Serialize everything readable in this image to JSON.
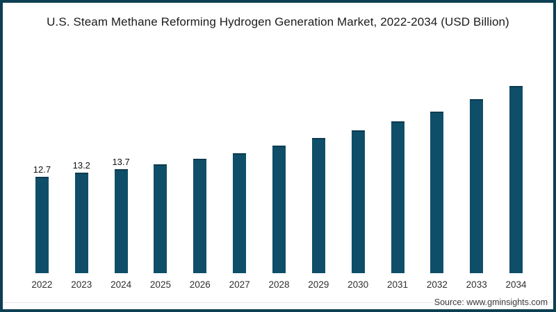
{
  "page": {
    "background_color": "#ffffff",
    "frame_border_color": "#0d3f53"
  },
  "chart_data": {
    "type": "bar",
    "title": "U.S. Steam Methane Reforming Hydrogen Generation Market, 2022-2034 (USD Billion)",
    "categories": [
      "2022",
      "2023",
      "2024",
      "2025",
      "2026",
      "2027",
      "2028",
      "2029",
      "2030",
      "2031",
      "2032",
      "2033",
      "2034"
    ],
    "values": [
      12.7,
      13.2,
      13.7,
      14.3,
      15.1,
      15.8,
      16.8,
      17.8,
      18.8,
      20.0,
      21.3,
      22.9,
      24.7
    ],
    "visible_value_labels": [
      "12.7",
      "13.2",
      "13.7",
      "",
      "",
      "",
      "",
      "",
      "",
      "",
      "",
      "",
      ""
    ],
    "xlabel": "",
    "ylabel": "",
    "ylim": [
      0,
      26
    ],
    "gridlines": false,
    "legend_position": "none",
    "bar_color": "#0f4e68",
    "bar_top_edge_color": "#0b3b50"
  },
  "footer": {
    "source_label": "Source: www.gminsights.com"
  }
}
